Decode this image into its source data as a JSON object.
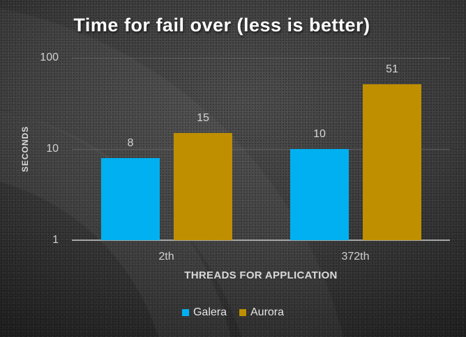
{
  "chart_data": {
    "type": "bar",
    "title": "Time for fail over (less is better)",
    "categories": [
      "2th",
      "372th"
    ],
    "series": [
      {
        "name": "Galera",
        "color": "#00B0F0",
        "values": [
          8,
          10
        ]
      },
      {
        "name": "Aurora",
        "color": "#BF8F00",
        "values": [
          15,
          51
        ]
      }
    ],
    "xlabel": "THREADS FOR APPLICATION",
    "ylabel": "SECONDS",
    "y_scale": "log",
    "ylim": [
      1,
      100
    ],
    "y_ticks": [
      "1",
      "10",
      "100"
    ],
    "grid": true,
    "legend_position": "bottom",
    "data_labels": true
  },
  "colors": {
    "background_center": "#4f4f4f",
    "background_edge": "#1c1c1c",
    "gridline": "#5e5e5e",
    "axis_line": "#a6a6a6",
    "tick_text": "#cfcfcf",
    "label_text": "#d6d6d6",
    "title_text": "#ffffff"
  }
}
